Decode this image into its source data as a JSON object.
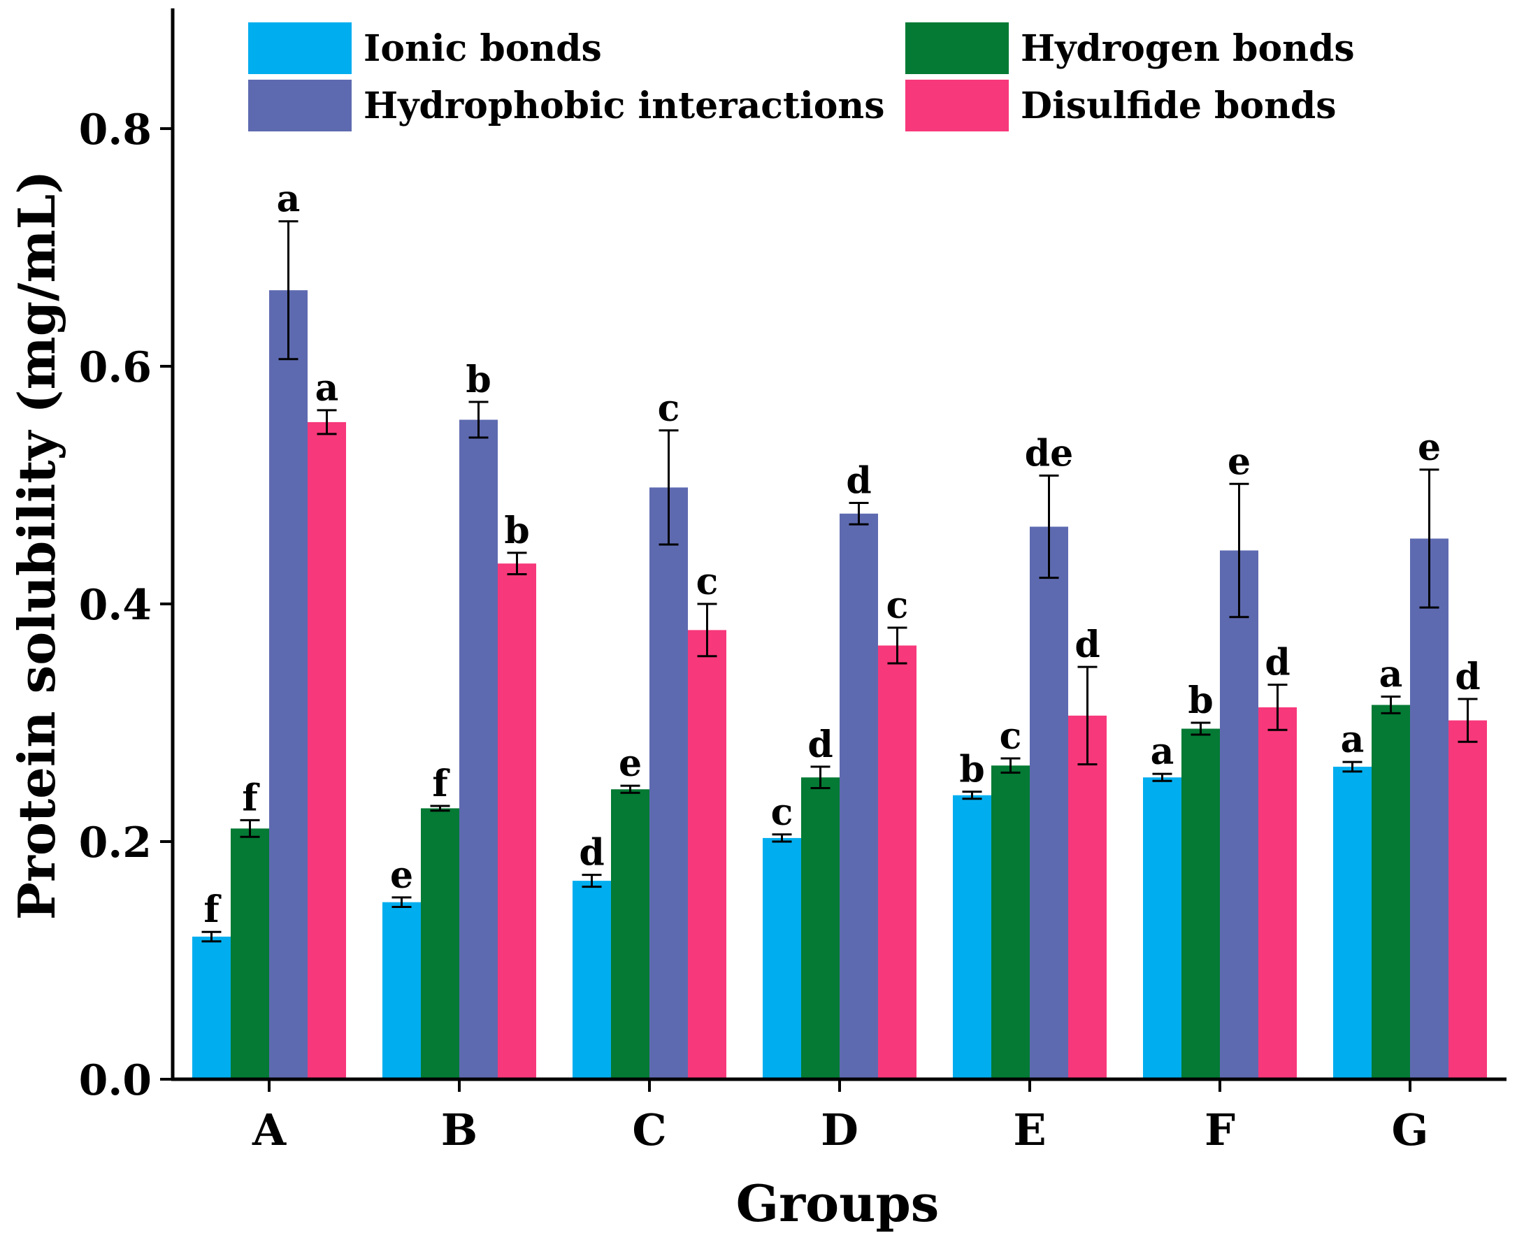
{
  "chart_data": {
    "type": "bar",
    "xlabel": "Groups",
    "ylabel": "Protein solubility (mg/mL)",
    "ylim": [
      0,
      0.9
    ],
    "yticks": [
      0.0,
      0.2,
      0.4,
      0.6,
      0.8
    ],
    "ytick_labels": [
      "0.0",
      "0.2",
      "0.4",
      "0.6",
      "0.8"
    ],
    "categories": [
      "A",
      "B",
      "C",
      "D",
      "E",
      "F",
      "G"
    ],
    "legend_position": "top",
    "series": [
      {
        "name": "Ionic bonds",
        "color": "#00AEEF",
        "values": [
          0.12,
          0.149,
          0.167,
          0.203,
          0.239,
          0.254,
          0.263
        ],
        "errors": [
          0.004,
          0.004,
          0.005,
          0.003,
          0.003,
          0.003,
          0.004
        ],
        "labels": [
          "f",
          "e",
          "d",
          "c",
          "b",
          "a",
          "a"
        ]
      },
      {
        "name": "Hydrogen bonds",
        "color": "#047A34",
        "values": [
          0.211,
          0.228,
          0.244,
          0.254,
          0.264,
          0.295,
          0.315
        ],
        "errors": [
          0.007,
          0.002,
          0.003,
          0.009,
          0.006,
          0.005,
          0.007
        ],
        "labels": [
          "f",
          "f",
          "e",
          "d",
          "c",
          "b",
          "a"
        ]
      },
      {
        "name": "Hydrophobic interactions",
        "color": "#5E6AB0",
        "values": [
          0.664,
          0.555,
          0.498,
          0.476,
          0.465,
          0.445,
          0.455
        ],
        "errors": [
          0.058,
          0.015,
          0.048,
          0.009,
          0.043,
          0.056,
          0.058
        ],
        "labels": [
          "a",
          "b",
          "c",
          "d",
          "de",
          "e",
          "e"
        ]
      },
      {
        "name": "Disulfide bonds",
        "color": "#F7387A",
        "values": [
          0.553,
          0.434,
          0.378,
          0.365,
          0.306,
          0.313,
          0.302
        ],
        "errors": [
          0.01,
          0.009,
          0.022,
          0.015,
          0.041,
          0.019,
          0.018
        ],
        "labels": [
          "a",
          "b",
          "c",
          "c",
          "d",
          "d",
          "d"
        ]
      }
    ]
  }
}
